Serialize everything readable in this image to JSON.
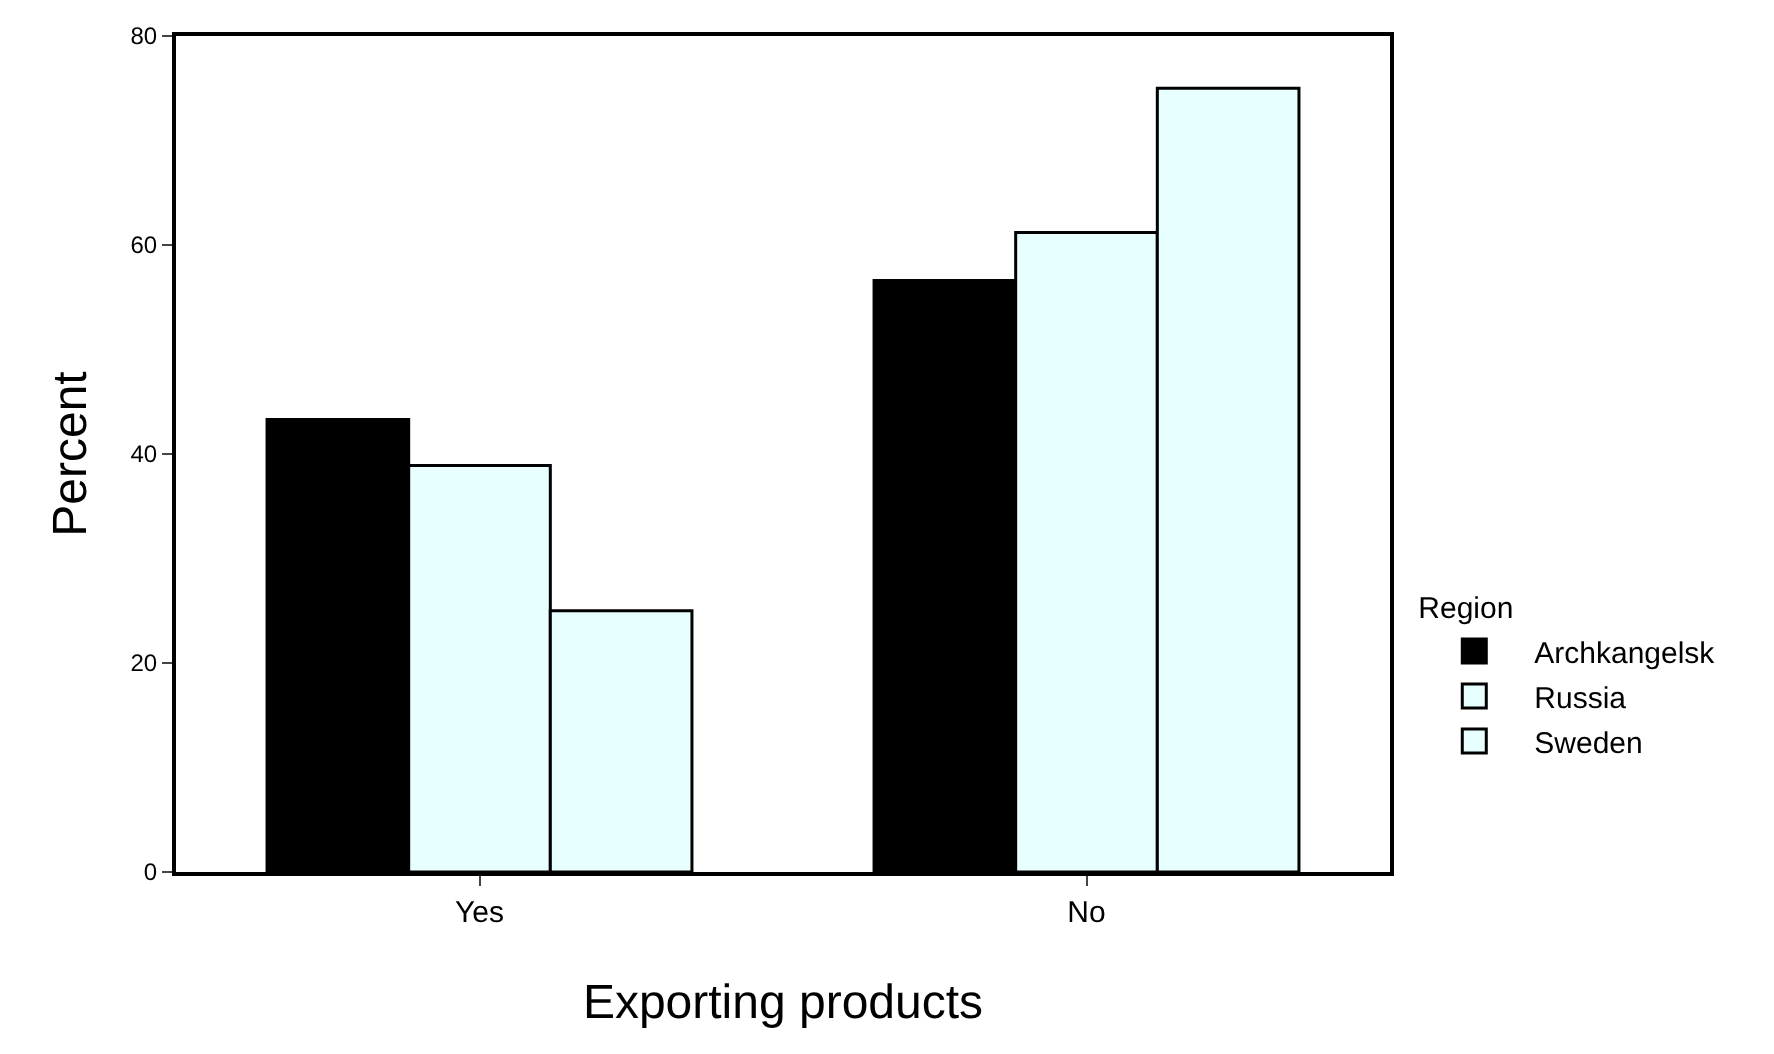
{
  "chart_data": {
    "type": "bar",
    "xlabel": "Exporting products",
    "ylabel": "Percent",
    "legend_title": "Region",
    "categories": [
      "Yes",
      "No"
    ],
    "series": [
      {
        "name": "Archkangelsk",
        "color": "#000000",
        "values": [
          43.3,
          56.6
        ]
      },
      {
        "name": "Russia",
        "color": "#e8ffff",
        "values": [
          38.9,
          61.2
        ]
      },
      {
        "name": "Sweden",
        "color": "#e8ffff",
        "values": [
          25.0,
          75.0
        ]
      }
    ],
    "ylim": [
      0,
      80
    ],
    "yticks": [
      0,
      20,
      40,
      60,
      80
    ],
    "legend": "right"
  }
}
